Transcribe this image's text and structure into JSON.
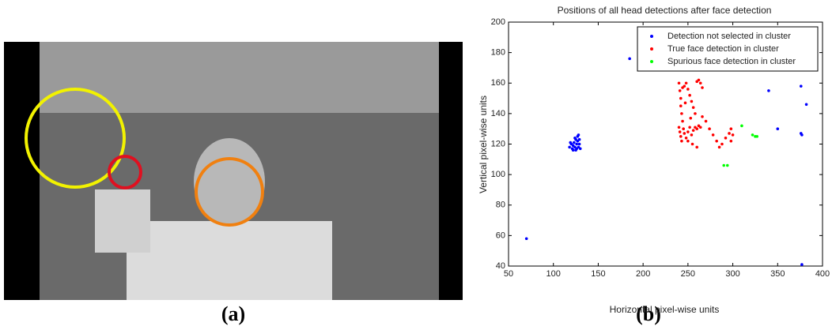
{
  "panels": [
    "(a)",
    "(b)"
  ],
  "chart_data": {
    "type": "scatter",
    "title": "Positions of all head detections after face detection",
    "x_label": "Horizontal pixel-wise units",
    "y_label": "Vertical pixel-wise units",
    "xlim": [
      50,
      400
    ],
    "xticks": [
      50,
      100,
      150,
      200,
      250,
      300,
      350,
      400
    ],
    "ylim": [
      40,
      200
    ],
    "yticks": [
      40,
      60,
      80,
      100,
      120,
      140,
      160,
      180,
      200
    ],
    "grid": false,
    "legend": "upper right",
    "series": [
      {
        "name": "Detection not selected in cluster",
        "color": "#0000ff",
        "x": [
          70,
          185,
          340,
          350,
          376,
          382,
          376,
          377,
          377,
          118,
          120,
          121,
          122,
          123,
          124,
          125,
          125,
          126,
          127,
          127,
          128,
          128,
          129,
          130,
          122,
          124,
          126,
          129,
          119
        ],
        "values": [
          58,
          176,
          155,
          130,
          158,
          146,
          127,
          126,
          41,
          118,
          120,
          117,
          119,
          121,
          118,
          123,
          116,
          120,
          122,
          125,
          118,
          126,
          120,
          117,
          116,
          124,
          117,
          123,
          121
        ]
      },
      {
        "name": "True face detection in cluster",
        "color": "#ff0000",
        "x": [
          240,
          241,
          242,
          242,
          243,
          244,
          240,
          241,
          242,
          243,
          245,
          246,
          248,
          250,
          252,
          254,
          256,
          258,
          260,
          262,
          264,
          246,
          248,
          250,
          252,
          254,
          256,
          258,
          260,
          262,
          266,
          270,
          274,
          278,
          282,
          285,
          288,
          292,
          296,
          298,
          298,
          300,
          264,
          266,
          250,
          255,
          260,
          244,
          247,
          253
        ],
        "values": [
          160,
          155,
          150,
          145,
          140,
          135,
          131,
          128,
          125,
          122,
          130,
          127,
          124,
          128,
          131,
          126,
          129,
          131,
          130,
          132,
          131,
          158,
          160,
          156,
          152,
          148,
          144,
          140,
          161,
          162,
          138,
          135,
          130,
          126,
          122,
          118,
          120,
          124,
          127,
          130,
          122,
          126,
          160,
          157,
          122,
          120,
          118,
          157,
          147,
          137
        ]
      },
      {
        "name": "Spurious face detection in cluster",
        "color": "#00ff00",
        "x": [
          310,
          322,
          325,
          327,
          290,
          294
        ],
        "values": [
          132,
          126,
          125,
          125,
          106,
          106
        ]
      }
    ]
  }
}
